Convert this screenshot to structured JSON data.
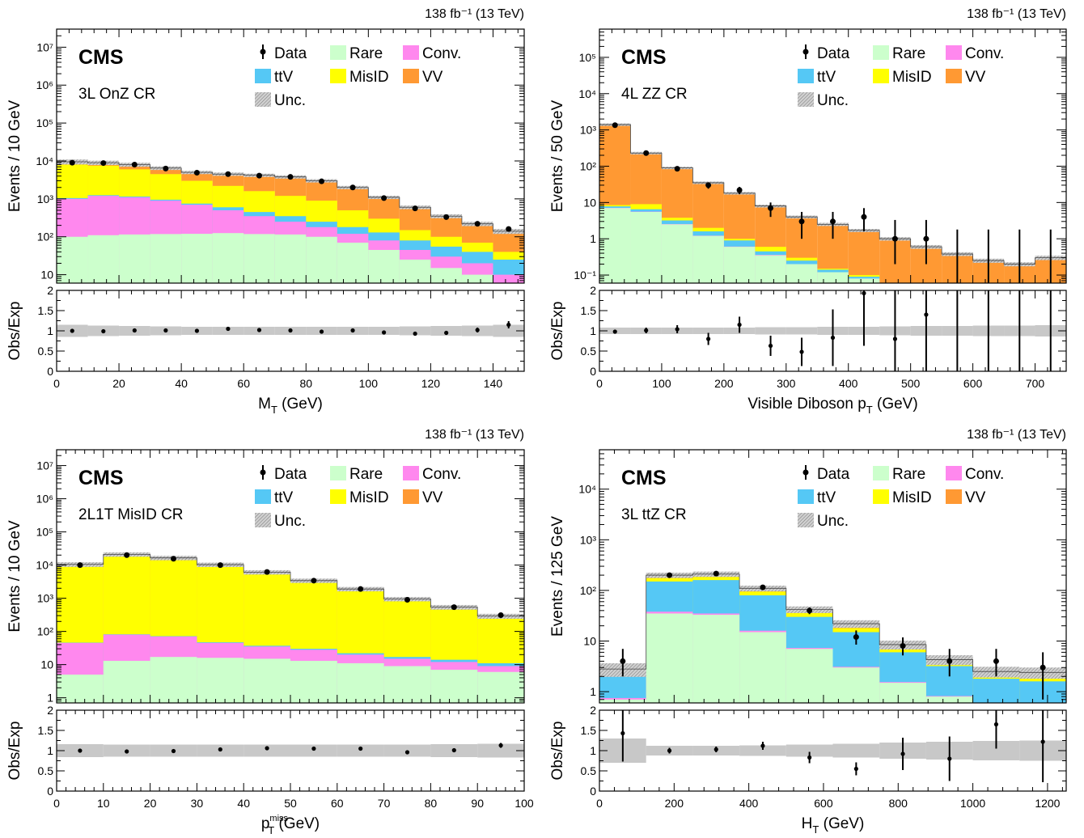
{
  "legend": [
    {
      "key": "data",
      "label": "Data"
    },
    {
      "key": "rare",
      "label": "Rare",
      "color": "#ccffcc"
    },
    {
      "key": "conv",
      "label": "Conv.",
      "color": "#ff88ee"
    },
    {
      "key": "ttv",
      "label": "ttV",
      "color": "#55c8f5"
    },
    {
      "key": "misid",
      "label": "MisID",
      "color": "#ffff00"
    },
    {
      "key": "vv",
      "label": "VV",
      "color": "#ff9933"
    },
    {
      "key": "unc",
      "label": "Unc.",
      "color": "#bbbbbb"
    }
  ],
  "chart_data": [
    {
      "type": "bar",
      "stacked": true,
      "log_y": true,
      "experiment": "CMS",
      "lumi_label": "138 fb⁻¹ (13 TeV)",
      "region_label": "3L OnZ CR",
      "ylabel": "Events / 10 GeV",
      "ratio_ylabel": "Obs/Exp",
      "xlabel": "M",
      "xlabel_sub": "T",
      "xlabel_unit": "(GeV)",
      "xlim": [
        0,
        150
      ],
      "ylim": [
        6,
        30000000
      ],
      "ratio_ylim": [
        0,
        2
      ],
      "x_ticks": [
        0,
        20,
        40,
        60,
        80,
        100,
        120,
        140
      ],
      "y_ticks": [
        {
          "value": 10,
          "label": "10"
        },
        {
          "value": 100,
          "label": "10²"
        },
        {
          "value": 1000,
          "label": "10³"
        },
        {
          "value": 10000,
          "label": "10⁴"
        },
        {
          "value": 100000,
          "label": "10⁵"
        },
        {
          "value": 1000000,
          "label": "10⁶"
        },
        {
          "value": 10000000,
          "label": "10⁷"
        }
      ],
      "bin_edges": [
        0,
        10,
        20,
        30,
        40,
        50,
        60,
        70,
        80,
        90,
        100,
        110,
        120,
        130,
        140,
        150
      ],
      "stack_top": {
        "rare": [
          100,
          110,
          115,
          118,
          120,
          125,
          118,
          115,
          100,
          70,
          45,
          25,
          15,
          10,
          6
        ],
        "conv": [
          1000,
          1200,
          1100,
          900,
          700,
          500,
          350,
          250,
          180,
          120,
          80,
          45,
          30,
          20,
          10
        ],
        "ttv": [
          1050,
          1250,
          1150,
          950,
          750,
          600,
          450,
          350,
          250,
          180,
          130,
          80,
          55,
          40,
          25
        ],
        "misid": [
          8000,
          7500,
          6000,
          4500,
          3000,
          2200,
          1600,
          1200,
          900,
          500,
          300,
          150,
          100,
          70,
          40
        ],
        "vv": [
          9500,
          9000,
          8000,
          6500,
          5000,
          4500,
          4200,
          3800,
          3000,
          2000,
          1100,
          600,
          350,
          220,
          140
        ]
      },
      "data": {
        "x": [
          5,
          15,
          25,
          35,
          45,
          55,
          65,
          75,
          85,
          95,
          105,
          115,
          125,
          135,
          145
        ],
        "y": [
          9000,
          8800,
          8000,
          6300,
          4900,
          4500,
          4100,
          3800,
          2900,
          2000,
          1050,
          560,
          330,
          220,
          160
        ],
        "err_lo": [
          0,
          0,
          0,
          0,
          0,
          0,
          0,
          0,
          0,
          0,
          0,
          0,
          0,
          0,
          0
        ],
        "err_hi": [
          0,
          0,
          0,
          0,
          0,
          0,
          0,
          0,
          0,
          0,
          0,
          0,
          0,
          0,
          0
        ]
      },
      "unc_frac": [
        0.15,
        0.13,
        0.12,
        0.11,
        0.1,
        0.1,
        0.1,
        0.1,
        0.1,
        0.1,
        0.1,
        0.11,
        0.12,
        0.13,
        0.15
      ],
      "ratio": {
        "y": [
          1.0,
          0.99,
          1.01,
          1.01,
          1.0,
          1.05,
          1.02,
          1.01,
          0.98,
          1.01,
          0.96,
          0.93,
          0.95,
          1.02,
          1.15
        ],
        "err": [
          0.02,
          0.02,
          0.02,
          0.02,
          0.02,
          0.02,
          0.02,
          0.02,
          0.02,
          0.03,
          0.03,
          0.04,
          0.05,
          0.06,
          0.09
        ]
      }
    },
    {
      "type": "bar",
      "stacked": true,
      "log_y": true,
      "experiment": "CMS",
      "lumi_label": "138 fb⁻¹ (13 TeV)",
      "region_label": "4L ZZ CR",
      "ylabel": "Events / 50 GeV",
      "ratio_ylabel": "Obs/Exp",
      "xlabel": "Visible Diboson p",
      "xlabel_sub": "T",
      "xlabel_unit": "(GeV)",
      "xlim": [
        0,
        750
      ],
      "ylim": [
        0.06,
        600000
      ],
      "ratio_ylim": [
        0,
        2
      ],
      "x_ticks": [
        0,
        100,
        200,
        300,
        400,
        500,
        600,
        700
      ],
      "y_ticks": [
        {
          "value": 0.1,
          "label": "10⁻¹"
        },
        {
          "value": 1,
          "label": "1"
        },
        {
          "value": 10,
          "label": "10"
        },
        {
          "value": 100,
          "label": "10²"
        },
        {
          "value": 1000,
          "label": "10³"
        },
        {
          "value": 10000,
          "label": "10⁴"
        },
        {
          "value": 100000,
          "label": "10⁵"
        }
      ],
      "bin_edges": [
        0,
        50,
        100,
        150,
        200,
        250,
        300,
        350,
        400,
        450,
        500,
        550,
        600,
        650,
        700,
        750
      ],
      "stack_top": {
        "rare": [
          7,
          5.5,
          2.5,
          1.2,
          0.6,
          0.35,
          0.2,
          0.12,
          0.08,
          0.05,
          0.04,
          0.03,
          0.02,
          0.01,
          0.01
        ],
        "conv": [
          7.1,
          5.6,
          2.55,
          1.22,
          0.61,
          0.36,
          0.2,
          0.12,
          0.08,
          0.05,
          0.04,
          0.03,
          0.02,
          0.01,
          0.01
        ],
        "ttv": [
          7.8,
          6.5,
          3.2,
          1.6,
          0.9,
          0.45,
          0.25,
          0.14,
          0.09,
          0.05,
          0.04,
          0.03,
          0.02,
          0.01,
          0.01
        ],
        "misid": [
          8.5,
          9,
          3.8,
          2.0,
          1.0,
          0.6,
          0.3,
          0.15,
          0.1,
          0.06,
          0.04,
          0.03,
          0.02,
          0.01,
          0.01
        ],
        "vv": [
          1400,
          230,
          90,
          35,
          18,
          8,
          4,
          2.5,
          1.7,
          1.0,
          0.6,
          0.38,
          0.25,
          0.2,
          0.3
        ]
      },
      "data": {
        "x": [
          25,
          75,
          125,
          175,
          225,
          275,
          325,
          375,
          425,
          475,
          525,
          575,
          625,
          675,
          725
        ],
        "y": [
          1350,
          230,
          85,
          30,
          22,
          7,
          3,
          3,
          4,
          1,
          1,
          null,
          null,
          null,
          null
        ],
        "err_lo": [
          40,
          15,
          9,
          6,
          5,
          3,
          2,
          2,
          2.4,
          0.8,
          0.8,
          0,
          0,
          0,
          0
        ],
        "err_hi": [
          40,
          15,
          9,
          6,
          5,
          3,
          2.5,
          2.5,
          3,
          2.3,
          2.3,
          1.8,
          1.8,
          1.8,
          1.8
        ]
      },
      "unc_frac": [
        0.08,
        0.08,
        0.08,
        0.08,
        0.08,
        0.09,
        0.09,
        0.1,
        0.1,
        0.11,
        0.12,
        0.12,
        0.13,
        0.13,
        0.14
      ],
      "ratio": {
        "y": [
          0.98,
          1.01,
          1.04,
          0.8,
          1.15,
          0.63,
          0.48,
          0.83,
          1.93,
          0.8,
          1.4,
          null,
          null,
          null,
          null
        ],
        "err": [
          0.03,
          0.07,
          0.1,
          0.15,
          0.2,
          0.25,
          0.35,
          0.7,
          1.3,
          1.3,
          1.5,
          2,
          2,
          2,
          2
        ]
      }
    },
    {
      "type": "bar",
      "stacked": true,
      "log_y": true,
      "experiment": "CMS",
      "lumi_label": "138 fb⁻¹ (13 TeV)",
      "region_label": "2L1T MisID CR",
      "ylabel": "Events / 10 GeV",
      "ratio_ylabel": "Obs/Exp",
      "xlabel": "p",
      "xlabel_sub": "T",
      "xlabel_sup": "miss",
      "xlabel_unit": "(GeV)",
      "xlim": [
        0,
        100
      ],
      "ylim": [
        0.7,
        30000000
      ],
      "ratio_ylim": [
        0,
        2
      ],
      "x_ticks": [
        0,
        10,
        20,
        30,
        40,
        50,
        60,
        70,
        80,
        90,
        100
      ],
      "y_ticks": [
        {
          "value": 1,
          "label": "1"
        },
        {
          "value": 10,
          "label": "10"
        },
        {
          "value": 100,
          "label": "10²"
        },
        {
          "value": 1000,
          "label": "10³"
        },
        {
          "value": 10000,
          "label": "10⁴"
        },
        {
          "value": 100000,
          "label": "10⁵"
        },
        {
          "value": 1000000,
          "label": "10⁶"
        },
        {
          "value": 10000000,
          "label": "10⁷"
        }
      ],
      "bin_edges": [
        0,
        10,
        20,
        30,
        40,
        50,
        60,
        70,
        80,
        90,
        100
      ],
      "stack_top": {
        "rare": [
          5,
          13,
          17,
          16,
          15,
          13,
          11,
          9,
          7,
          6
        ],
        "conv": [
          45,
          80,
          70,
          45,
          35,
          28,
          20,
          15,
          12,
          9
        ],
        "ttv": [
          46,
          82,
          72,
          47,
          37,
          30,
          22,
          17,
          14,
          11
        ],
        "misid": [
          9000,
          19000,
          14000,
          9000,
          5300,
          3000,
          1700,
          850,
          480,
          260
        ],
        "vv": [
          10500,
          21000,
          16500,
          10300,
          6100,
          3400,
          1900,
          950,
          540,
          290
        ]
      },
      "data": {
        "x": [
          5,
          15,
          25,
          35,
          45,
          55,
          65,
          75,
          85,
          95
        ],
        "y": [
          10000,
          20000,
          15500,
          10000,
          6200,
          3400,
          1900,
          900,
          540,
          310
        ],
        "err_lo": [
          0,
          0,
          0,
          0,
          0,
          0,
          0,
          0,
          0,
          0
        ],
        "err_hi": [
          0,
          0,
          0,
          0,
          0,
          0,
          0,
          0,
          0,
          0
        ]
      },
      "unc_frac": [
        0.16,
        0.15,
        0.15,
        0.15,
        0.15,
        0.15,
        0.15,
        0.15,
        0.16,
        0.17
      ],
      "ratio": {
        "y": [
          1.0,
          0.98,
          0.99,
          1.03,
          1.06,
          1.05,
          1.05,
          0.96,
          1.01,
          1.13
        ],
        "err": [
          0.02,
          0.01,
          0.01,
          0.02,
          0.02,
          0.02,
          0.03,
          0.04,
          0.05,
          0.06
        ]
      }
    },
    {
      "type": "bar",
      "stacked": true,
      "log_y": true,
      "experiment": "CMS",
      "lumi_label": "138 fb⁻¹ (13 TeV)",
      "region_label": "3L ttZ CR",
      "ylabel": "Events / 125 GeV",
      "ratio_ylabel": "Obs/Exp",
      "xlabel": "H",
      "xlabel_sub": "T",
      "xlabel_unit": "(GeV)",
      "xlim": [
        0,
        1250
      ],
      "ylim": [
        0.6,
        60000
      ],
      "ratio_ylim": [
        0,
        2
      ],
      "x_ticks": [
        0,
        200,
        400,
        600,
        800,
        1000,
        1200
      ],
      "y_ticks": [
        {
          "value": 1,
          "label": "1"
        },
        {
          "value": 10,
          "label": "10"
        },
        {
          "value": 100,
          "label": "10²"
        },
        {
          "value": 1000,
          "label": "10³"
        },
        {
          "value": 10000,
          "label": "10⁴"
        }
      ],
      "bin_edges": [
        0,
        125,
        250,
        375,
        500,
        625,
        750,
        875,
        1000,
        1125,
        1250
      ],
      "stack_top": {
        "rare": [
          0.7,
          35,
          33,
          15,
          7,
          3,
          1.5,
          0.8,
          0.5,
          0.4
        ],
        "conv": [
          0.75,
          38,
          35,
          16,
          7.3,
          3.1,
          1.55,
          0.82,
          0.51,
          0.41
        ],
        "ttv": [
          2.0,
          150,
          160,
          80,
          30,
          15,
          6,
          3.2,
          1.8,
          1.6
        ],
        "misid": [
          2.4,
          175,
          185,
          95,
          36,
          18,
          7,
          3.7,
          2.1,
          1.9
        ],
        "vv": [
          2.8,
          200,
          210,
          110,
          42,
          22,
          8.5,
          4.3,
          2.5,
          2.4
        ]
      },
      "data": {
        "x": [
          62.5,
          187.5,
          312.5,
          437.5,
          562.5,
          687.5,
          812.5,
          937.5,
          1062.5,
          1187.5
        ],
        "y": [
          4,
          200,
          215,
          115,
          40,
          12,
          8,
          4,
          4,
          3
        ],
        "err_lo": [
          2,
          14,
          15,
          11,
          6,
          3.5,
          2.8,
          2,
          2,
          2.3
        ],
        "err_hi": [
          3,
          14,
          15,
          11,
          6,
          4.2,
          3.8,
          3,
          3,
          3
        ]
      },
      "unc_frac": [
        0.3,
        0.12,
        0.12,
        0.13,
        0.15,
        0.17,
        0.2,
        0.22,
        0.24,
        0.25
      ],
      "ratio": {
        "y": [
          1.43,
          1.0,
          1.03,
          1.12,
          0.83,
          0.55,
          0.92,
          0.8,
          1.65,
          1.22
        ],
        "err": [
          0.7,
          0.07,
          0.07,
          0.1,
          0.14,
          0.16,
          0.4,
          0.55,
          0.6,
          1.0
        ]
      }
    }
  ]
}
